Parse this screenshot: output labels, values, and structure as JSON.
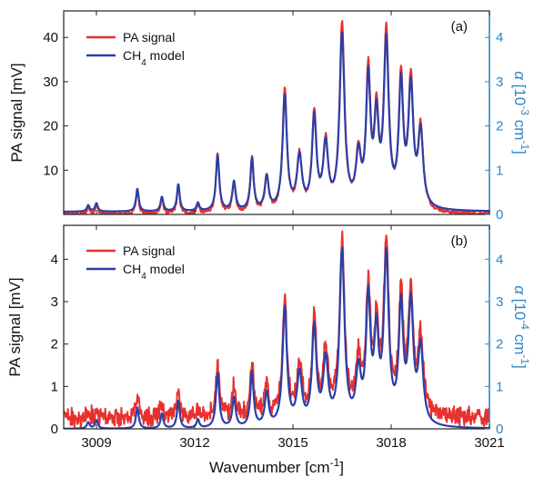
{
  "chart_data": [
    {
      "type": "line",
      "panel_label": "(a)",
      "xlabel": "Wavenumber",
      "xlabel_unit": "[cm",
      "xlabel_unit_sup": "-1",
      "xlabel_unit_end": "]",
      "xlim": [
        3008,
        3021
      ],
      "xticks": [
        3009,
        3012,
        3015,
        3018,
        3021
      ],
      "ylabel": "PA signal  [mV]",
      "ylim": [
        0,
        46
      ],
      "yticks": [
        10,
        20,
        30,
        40
      ],
      "y2label_alpha": "α",
      "y2label_pre": "[10",
      "y2label_sup": "-3",
      "y2label_mid": " cm",
      "y2label_sup2": "-1",
      "y2label_end": "]",
      "y2lim": [
        0,
        4.6
      ],
      "y2ticks": [
        0,
        1,
        2,
        3,
        4
      ],
      "legend_position": "top-left",
      "noise": 0.4,
      "model_scale": 0.93,
      "series": [
        {
          "name": "PA signal",
          "color": "#e8312f"
        },
        {
          "name": "CH",
          "name_sub": "4",
          "name_suffix": " model",
          "color": "#2b3fa6"
        }
      ],
      "peaks": [
        {
          "x": 3008.75,
          "h": 1.5,
          "w": 0.05
        },
        {
          "x": 3009.0,
          "h": 2.0,
          "w": 0.05
        },
        {
          "x": 3010.25,
          "h": 5.5,
          "w": 0.05
        },
        {
          "x": 3011.0,
          "h": 3.5,
          "w": 0.05
        },
        {
          "x": 3011.5,
          "h": 6.5,
          "w": 0.05
        },
        {
          "x": 3012.1,
          "h": 2.0,
          "w": 0.05
        },
        {
          "x": 3012.7,
          "h": 13.5,
          "w": 0.06
        },
        {
          "x": 3013.2,
          "h": 7.0,
          "w": 0.06
        },
        {
          "x": 3013.75,
          "h": 12.5,
          "w": 0.06
        },
        {
          "x": 3014.2,
          "h": 8.0,
          "w": 0.07
        },
        {
          "x": 3014.75,
          "h": 27.5,
          "w": 0.08
        },
        {
          "x": 3015.2,
          "h": 12.5,
          "w": 0.09
        },
        {
          "x": 3015.65,
          "h": 22.0,
          "w": 0.08
        },
        {
          "x": 3016.0,
          "h": 15.0,
          "w": 0.09
        },
        {
          "x": 3016.5,
          "h": 42.0,
          "w": 0.09
        },
        {
          "x": 3017.0,
          "h": 12.0,
          "w": 0.09
        },
        {
          "x": 3017.3,
          "h": 30.5,
          "w": 0.08
        },
        {
          "x": 3017.55,
          "h": 20.0,
          "w": 0.08
        },
        {
          "x": 3017.85,
          "h": 39.5,
          "w": 0.09
        },
        {
          "x": 3018.3,
          "h": 29.0,
          "w": 0.08
        },
        {
          "x": 3018.6,
          "h": 28.5,
          "w": 0.09
        },
        {
          "x": 3018.9,
          "h": 18.0,
          "w": 0.09
        }
      ]
    },
    {
      "type": "line",
      "panel_label": "(b)",
      "xlabel": "Wavenumber",
      "xlabel_unit": "[cm",
      "xlabel_unit_sup": "-1",
      "xlabel_unit_end": "]",
      "xlim": [
        3008,
        3021
      ],
      "xticks": [
        3009,
        3012,
        3015,
        3018,
        3021
      ],
      "ylabel": "PA signal  [mV]",
      "ylim": [
        0,
        4.8
      ],
      "yticks": [
        0,
        1,
        2,
        3,
        4
      ],
      "y2label_alpha": "α",
      "y2label_pre": "[10",
      "y2label_sup": "-4",
      "y2label_mid": " cm",
      "y2label_sup2": "-1",
      "y2label_end": "]",
      "y2lim": [
        0,
        4.8
      ],
      "y2ticks": [
        0,
        1,
        2,
        3,
        4
      ],
      "legend_position": "top-left",
      "noise": 0.3,
      "model_scale": 1.0,
      "series": [
        {
          "name": "PA signal",
          "color": "#e8312f"
        },
        {
          "name": "CH",
          "name_sub": "4",
          "name_suffix": " model",
          "color": "#2b3fa6"
        }
      ],
      "peaks": [
        {
          "x": 3008.75,
          "h": 0.15,
          "w": 0.05
        },
        {
          "x": 3009.0,
          "h": 0.2,
          "w": 0.05
        },
        {
          "x": 3010.25,
          "h": 0.5,
          "w": 0.05
        },
        {
          "x": 3011.0,
          "h": 0.35,
          "w": 0.05
        },
        {
          "x": 3011.5,
          "h": 0.65,
          "w": 0.05
        },
        {
          "x": 3012.1,
          "h": 0.2,
          "w": 0.05
        },
        {
          "x": 3012.7,
          "h": 1.3,
          "w": 0.06
        },
        {
          "x": 3013.2,
          "h": 0.7,
          "w": 0.06
        },
        {
          "x": 3013.75,
          "h": 1.3,
          "w": 0.06
        },
        {
          "x": 3014.2,
          "h": 0.8,
          "w": 0.07
        },
        {
          "x": 3014.75,
          "h": 2.8,
          "w": 0.08
        },
        {
          "x": 3015.2,
          "h": 1.2,
          "w": 0.09
        },
        {
          "x": 3015.65,
          "h": 2.3,
          "w": 0.08
        },
        {
          "x": 3016.0,
          "h": 1.5,
          "w": 0.09
        },
        {
          "x": 3016.5,
          "h": 4.1,
          "w": 0.09
        },
        {
          "x": 3017.0,
          "h": 1.2,
          "w": 0.09
        },
        {
          "x": 3017.3,
          "h": 2.9,
          "w": 0.08
        },
        {
          "x": 3017.55,
          "h": 2.0,
          "w": 0.08
        },
        {
          "x": 3017.85,
          "h": 3.9,
          "w": 0.09
        },
        {
          "x": 3018.3,
          "h": 2.7,
          "w": 0.08
        },
        {
          "x": 3018.6,
          "h": 2.8,
          "w": 0.09
        },
        {
          "x": 3018.9,
          "h": 1.8,
          "w": 0.09
        }
      ]
    }
  ]
}
